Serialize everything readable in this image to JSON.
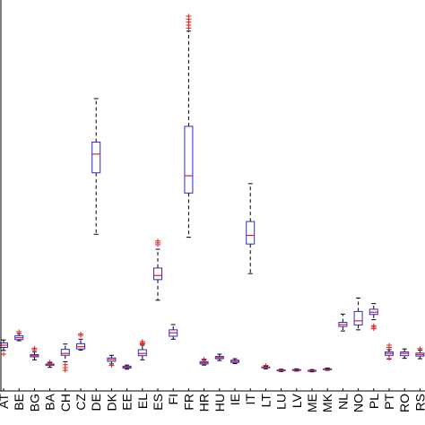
{
  "chart_data": {
    "type": "boxplot",
    "title": "",
    "xlabel": "",
    "ylabel": "",
    "ylim": [
      0,
      1
    ],
    "grid": false,
    "colors": {
      "box": "#2b2bd6",
      "median": "#e0201b",
      "whisker": "#000000",
      "outlier": "#e0201b"
    },
    "categories": [
      "AT",
      "BE",
      "BG",
      "BA",
      "CH",
      "CZ",
      "DE",
      "DK",
      "EE",
      "EL",
      "ES",
      "FI",
      "FR",
      "HR",
      "HU",
      "IE",
      "IT",
      "LT",
      "LU",
      "LV",
      "ME",
      "MK",
      "NL",
      "NO",
      "PL",
      "PT",
      "RO",
      "RS"
    ],
    "boxes": [
      {
        "label": "AT",
        "wlo": 0.108,
        "q1": 0.116,
        "med": 0.122,
        "q3": 0.128,
        "whi": 0.136,
        "outliers": [
          0.098
        ]
      },
      {
        "label": "BE",
        "wlo": 0.134,
        "q1": 0.137,
        "med": 0.142,
        "q3": 0.147,
        "whi": 0.153,
        "outliers": [
          0.158
        ]
      },
      {
        "label": "BG",
        "wlo": 0.083,
        "q1": 0.091,
        "med": 0.094,
        "q3": 0.097,
        "whi": 0.105,
        "outliers": [
          0.11,
          0.114
        ]
      },
      {
        "label": "BA",
        "wlo": 0.063,
        "q1": 0.068,
        "med": 0.07,
        "q3": 0.072,
        "whi": 0.075,
        "outliers": [
          0.077
        ]
      },
      {
        "label": "CH",
        "wlo": 0.078,
        "q1": 0.095,
        "med": 0.1,
        "q3": 0.111,
        "whi": 0.125,
        "outliers": [
          0.055,
          0.062,
          0.07
        ]
      },
      {
        "label": "CZ",
        "wlo": 0.109,
        "q1": 0.112,
        "med": 0.118,
        "q3": 0.126,
        "whi": 0.138,
        "outliers": [
          0.148,
          0.152
        ]
      },
      {
        "label": "DE",
        "wlo": 0.418,
        "q1": 0.582,
        "med": 0.632,
        "q3": 0.664,
        "whi": 0.78,
        "outliers": []
      },
      {
        "label": "DK",
        "wlo": 0.072,
        "q1": 0.079,
        "med": 0.084,
        "q3": 0.088,
        "whi": 0.095,
        "outliers": [
          0.068
        ]
      },
      {
        "label": "EE",
        "wlo": 0.058,
        "q1": 0.061,
        "med": 0.063,
        "q3": 0.066,
        "whi": 0.069,
        "outliers": []
      },
      {
        "label": "EL",
        "wlo": 0.083,
        "q1": 0.094,
        "med": 0.1,
        "q3": 0.11,
        "whi": 0.122,
        "outliers": [
          0.125,
          0.128,
          0.132
        ]
      },
      {
        "label": "ES",
        "wlo": 0.242,
        "q1": 0.297,
        "med": 0.308,
        "q3": 0.328,
        "whi": 0.378,
        "outliers": [
          0.39,
          0.395,
          0.4
        ]
      },
      {
        "label": "FI",
        "wlo": 0.138,
        "q1": 0.146,
        "med": 0.155,
        "q3": 0.163,
        "whi": 0.177,
        "outliers": []
      },
      {
        "label": "FR",
        "wlo": 0.41,
        "q1": 0.528,
        "med": 0.574,
        "q3": 0.706,
        "whi": 0.96,
        "outliers": [
          0.968,
          0.976,
          0.984,
          0.992,
          1.0
        ]
      },
      {
        "label": "HR",
        "wlo": 0.069,
        "q1": 0.072,
        "med": 0.075,
        "q3": 0.078,
        "whi": 0.082,
        "outliers": [
          0.085
        ]
      },
      {
        "label": "HU",
        "wlo": 0.081,
        "q1": 0.086,
        "med": 0.089,
        "q3": 0.092,
        "whi": 0.098,
        "outliers": []
      },
      {
        "label": "IE",
        "wlo": 0.073,
        "q1": 0.076,
        "med": 0.079,
        "q3": 0.082,
        "whi": 0.086,
        "outliers": []
      },
      {
        "label": "IT",
        "wlo": 0.313,
        "q1": 0.392,
        "med": 0.415,
        "q3": 0.452,
        "whi": 0.553,
        "outliers": []
      },
      {
        "label": "LT",
        "wlo": 0.059,
        "q1": 0.062,
        "med": 0.063,
        "q3": 0.064,
        "whi": 0.066,
        "outliers": [
          0.068
        ]
      },
      {
        "label": "LU",
        "wlo": 0.052,
        "q1": 0.054,
        "med": 0.055,
        "q3": 0.056,
        "whi": 0.058,
        "outliers": []
      },
      {
        "label": "LV",
        "wlo": 0.053,
        "q1": 0.055,
        "med": 0.056,
        "q3": 0.057,
        "whi": 0.059,
        "outliers": []
      },
      {
        "label": "ME",
        "wlo": 0.051,
        "q1": 0.053,
        "med": 0.054,
        "q3": 0.055,
        "whi": 0.057,
        "outliers": []
      },
      {
        "label": "MK",
        "wlo": 0.055,
        "q1": 0.057,
        "med": 0.058,
        "q3": 0.059,
        "whi": 0.061,
        "outliers": []
      },
      {
        "label": "NL",
        "wlo": 0.16,
        "q1": 0.172,
        "med": 0.177,
        "q3": 0.183,
        "whi": 0.205,
        "outliers": []
      },
      {
        "label": "NO",
        "wlo": 0.163,
        "q1": 0.176,
        "med": 0.187,
        "q3": 0.212,
        "whi": 0.248,
        "outliers": []
      },
      {
        "label": "PL",
        "wlo": 0.19,
        "q1": 0.204,
        "med": 0.21,
        "q3": 0.218,
        "whi": 0.233,
        "outliers": [
          0.166,
          0.17,
          0.174
        ]
      },
      {
        "label": "PT",
        "wlo": 0.085,
        "q1": 0.095,
        "med": 0.1,
        "q3": 0.104,
        "whi": 0.11,
        "outliers": [
          0.116,
          0.122,
          0.086
        ]
      },
      {
        "label": "RO",
        "wlo": 0.087,
        "q1": 0.094,
        "med": 0.1,
        "q3": 0.104,
        "whi": 0.112,
        "outliers": []
      },
      {
        "label": "RS",
        "wlo": 0.086,
        "q1": 0.093,
        "med": 0.097,
        "q3": 0.101,
        "whi": 0.109,
        "outliers": [
          0.113
        ]
      }
    ]
  }
}
